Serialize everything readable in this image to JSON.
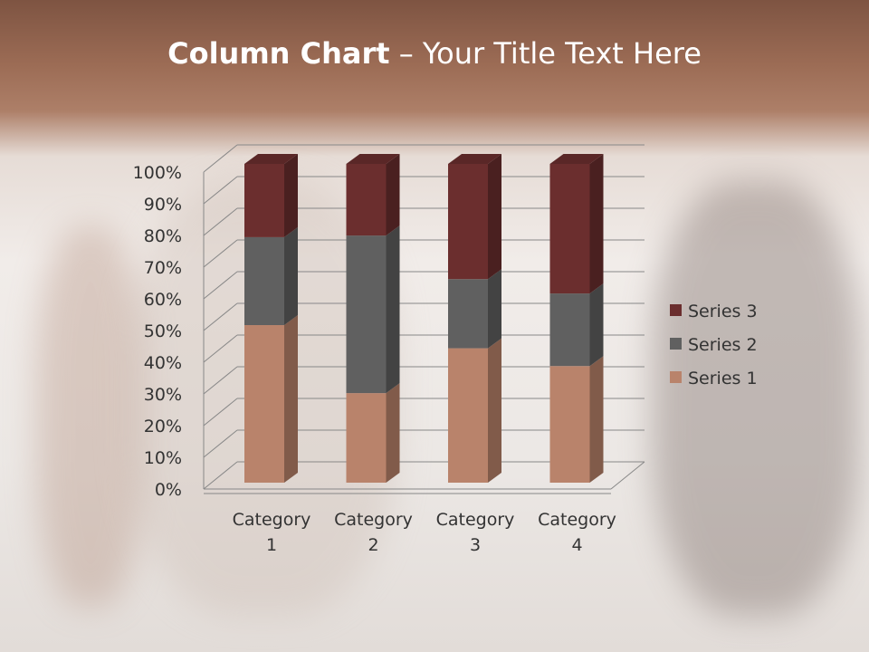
{
  "slide": {
    "title_bold": "Column Chart",
    "title_rest": " – Your Title Text Here"
  },
  "chart_data": {
    "type": "bar",
    "variant": "3d-100%-stacked-column",
    "categories": [
      "Category 1",
      "Category 2",
      "Category 3",
      "Category 4"
    ],
    "series": [
      {
        "name": "Series 1",
        "values": [
          4.3,
          2.5,
          3.5,
          4.5
        ],
        "color": "#b9836b"
      },
      {
        "name": "Series 2",
        "values": [
          2.4,
          4.4,
          1.8,
          2.8
        ],
        "color": "#606060"
      },
      {
        "name": "Series 3",
        "values": [
          2,
          2,
          3,
          5
        ],
        "color": "#6b2e2e"
      }
    ],
    "yticks": [
      "0%",
      "10%",
      "20%",
      "30%",
      "40%",
      "50%",
      "60%",
      "70%",
      "80%",
      "90%",
      "100%"
    ],
    "ylim": [
      0,
      100
    ],
    "grid": true,
    "legend": "right"
  }
}
